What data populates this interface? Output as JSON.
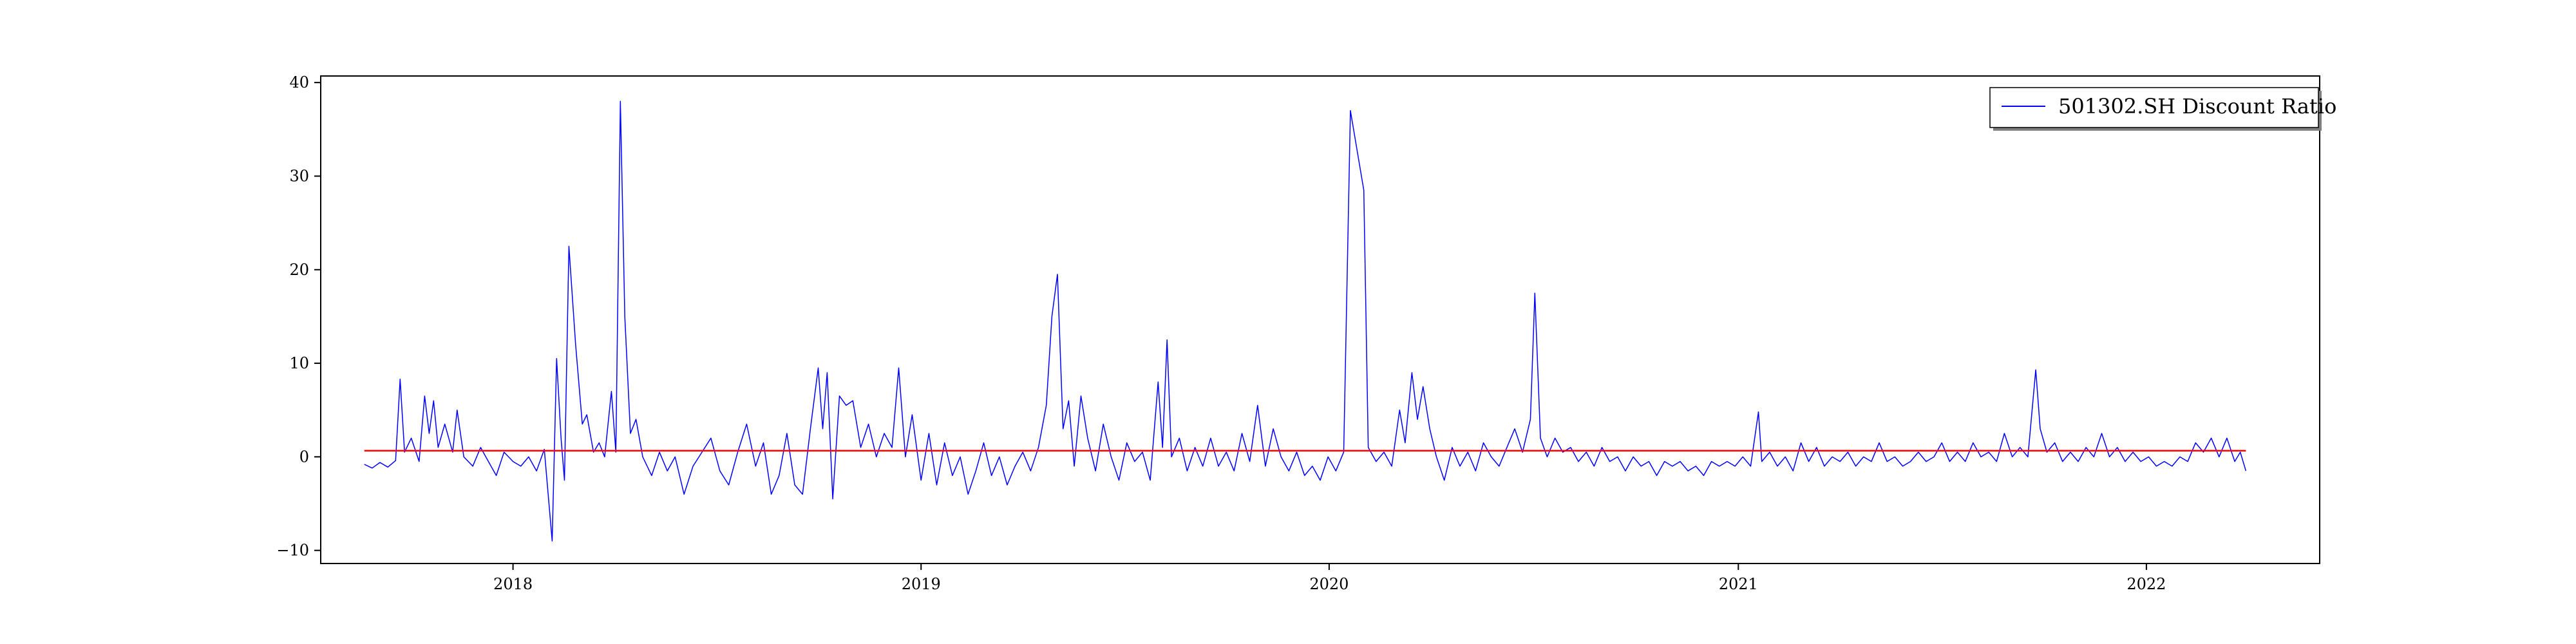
{
  "chart_data": {
    "type": "line",
    "title": "",
    "xlabel": "",
    "ylabel": "",
    "legend": {
      "placement": "top-right",
      "entries": [
        "501302.SH Discount Ratio"
      ]
    },
    "grid": false,
    "xlim": [
      "2017-07-13",
      "2022-06-05"
    ],
    "ylim": [
      -11.4,
      40.7
    ],
    "x_ticks": [
      {
        "date": "2018-01-01",
        "label": "2018"
      },
      {
        "date": "2019-01-01",
        "label": "2019"
      },
      {
        "date": "2020-01-01",
        "label": "2020"
      },
      {
        "date": "2021-01-01",
        "label": "2021"
      },
      {
        "date": "2022-01-01",
        "label": "2022"
      }
    ],
    "y_ticks": [
      -10,
      0,
      10,
      20,
      30,
      40
    ],
    "series": [
      {
        "name": "501302.SH Discount Ratio",
        "color": "#0000ff",
        "points": [
          [
            "2017-08-21",
            -0.8
          ],
          [
            "2017-08-28",
            -1.2
          ],
          [
            "2017-09-04",
            -0.6
          ],
          [
            "2017-09-11",
            -1.1
          ],
          [
            "2017-09-18",
            -0.4
          ],
          [
            "2017-09-22",
            8.3
          ],
          [
            "2017-09-26",
            0.5
          ],
          [
            "2017-10-02",
            2.0
          ],
          [
            "2017-10-09",
            -0.5
          ],
          [
            "2017-10-14",
            6.5
          ],
          [
            "2017-10-18",
            2.5
          ],
          [
            "2017-10-22",
            6.0
          ],
          [
            "2017-10-26",
            1.0
          ],
          [
            "2017-11-01",
            3.5
          ],
          [
            "2017-11-08",
            0.5
          ],
          [
            "2017-11-12",
            5.0
          ],
          [
            "2017-11-18",
            0.0
          ],
          [
            "2017-11-26",
            -1.0
          ],
          [
            "2017-12-03",
            1.0
          ],
          [
            "2017-12-10",
            -0.5
          ],
          [
            "2017-12-17",
            -2.0
          ],
          [
            "2017-12-24",
            0.5
          ],
          [
            "2018-01-01",
            -0.5
          ],
          [
            "2018-01-08",
            -1.0
          ],
          [
            "2018-01-15",
            0.0
          ],
          [
            "2018-01-22",
            -1.5
          ],
          [
            "2018-01-29",
            0.8
          ],
          [
            "2018-02-05",
            -9.0
          ],
          [
            "2018-02-09",
            10.5
          ],
          [
            "2018-02-13",
            2.0
          ],
          [
            "2018-02-16",
            -2.5
          ],
          [
            "2018-02-20",
            22.5
          ],
          [
            "2018-02-26",
            12.0
          ],
          [
            "2018-03-04",
            3.5
          ],
          [
            "2018-03-08",
            4.5
          ],
          [
            "2018-03-14",
            0.5
          ],
          [
            "2018-03-19",
            1.5
          ],
          [
            "2018-03-24",
            0.0
          ],
          [
            "2018-03-30",
            7.0
          ],
          [
            "2018-04-03",
            0.5
          ],
          [
            "2018-04-07",
            38.0
          ],
          [
            "2018-04-11",
            15.0
          ],
          [
            "2018-04-16",
            2.5
          ],
          [
            "2018-04-21",
            4.0
          ],
          [
            "2018-04-27",
            0.0
          ],
          [
            "2018-05-05",
            -2.0
          ],
          [
            "2018-05-12",
            0.5
          ],
          [
            "2018-05-19",
            -1.5
          ],
          [
            "2018-05-26",
            0.0
          ],
          [
            "2018-06-03",
            -4.0
          ],
          [
            "2018-06-11",
            -1.0
          ],
          [
            "2018-06-19",
            0.5
          ],
          [
            "2018-06-27",
            2.0
          ],
          [
            "2018-07-05",
            -1.5
          ],
          [
            "2018-07-13",
            -3.0
          ],
          [
            "2018-07-21",
            0.5
          ],
          [
            "2018-07-29",
            3.5
          ],
          [
            "2018-08-06",
            -1.0
          ],
          [
            "2018-08-13",
            1.5
          ],
          [
            "2018-08-20",
            -4.0
          ],
          [
            "2018-08-27",
            -2.0
          ],
          [
            "2018-09-03",
            2.5
          ],
          [
            "2018-09-10",
            -3.0
          ],
          [
            "2018-09-17",
            -4.0
          ],
          [
            "2018-09-24",
            3.0
          ],
          [
            "2018-10-01",
            9.5
          ],
          [
            "2018-10-05",
            3.0
          ],
          [
            "2018-10-09",
            9.0
          ],
          [
            "2018-10-14",
            -4.5
          ],
          [
            "2018-10-20",
            6.5
          ],
          [
            "2018-10-26",
            5.5
          ],
          [
            "2018-11-01",
            6.0
          ],
          [
            "2018-11-08",
            1.0
          ],
          [
            "2018-11-15",
            3.5
          ],
          [
            "2018-11-22",
            0.0
          ],
          [
            "2018-11-29",
            2.5
          ],
          [
            "2018-12-06",
            1.0
          ],
          [
            "2018-12-12",
            9.5
          ],
          [
            "2018-12-18",
            0.0
          ],
          [
            "2018-12-24",
            4.5
          ],
          [
            "2019-01-01",
            -2.5
          ],
          [
            "2019-01-08",
            2.5
          ],
          [
            "2019-01-15",
            -3.0
          ],
          [
            "2019-01-22",
            1.5
          ],
          [
            "2019-01-29",
            -2.0
          ],
          [
            "2019-02-05",
            0.0
          ],
          [
            "2019-02-12",
            -4.0
          ],
          [
            "2019-02-19",
            -1.5
          ],
          [
            "2019-02-26",
            1.5
          ],
          [
            "2019-03-05",
            -2.0
          ],
          [
            "2019-03-12",
            0.0
          ],
          [
            "2019-03-19",
            -3.0
          ],
          [
            "2019-03-26",
            -1.0
          ],
          [
            "2019-04-02",
            0.5
          ],
          [
            "2019-04-09",
            -1.5
          ],
          [
            "2019-04-16",
            1.0
          ],
          [
            "2019-04-23",
            5.5
          ],
          [
            "2019-04-28",
            15.0
          ],
          [
            "2019-05-03",
            19.5
          ],
          [
            "2019-05-08",
            3.0
          ],
          [
            "2019-05-13",
            6.0
          ],
          [
            "2019-05-18",
            -1.0
          ],
          [
            "2019-05-24",
            6.5
          ],
          [
            "2019-05-30",
            2.0
          ],
          [
            "2019-06-06",
            -1.5
          ],
          [
            "2019-06-13",
            3.5
          ],
          [
            "2019-06-20",
            0.0
          ],
          [
            "2019-06-27",
            -2.5
          ],
          [
            "2019-07-04",
            1.5
          ],
          [
            "2019-07-11",
            -0.5
          ],
          [
            "2019-07-18",
            0.5
          ],
          [
            "2019-07-25",
            -2.5
          ],
          [
            "2019-08-01",
            8.0
          ],
          [
            "2019-08-05",
            1.0
          ],
          [
            "2019-08-09",
            12.5
          ],
          [
            "2019-08-13",
            0.0
          ],
          [
            "2019-08-20",
            2.0
          ],
          [
            "2019-08-27",
            -1.5
          ],
          [
            "2019-09-03",
            1.0
          ],
          [
            "2019-09-10",
            -1.0
          ],
          [
            "2019-09-17",
            2.0
          ],
          [
            "2019-09-24",
            -1.0
          ],
          [
            "2019-10-01",
            0.5
          ],
          [
            "2019-10-08",
            -1.5
          ],
          [
            "2019-10-15",
            2.5
          ],
          [
            "2019-10-22",
            -0.5
          ],
          [
            "2019-10-29",
            5.5
          ],
          [
            "2019-11-05",
            -1.0
          ],
          [
            "2019-11-12",
            3.0
          ],
          [
            "2019-11-19",
            0.0
          ],
          [
            "2019-11-26",
            -1.5
          ],
          [
            "2019-12-03",
            0.5
          ],
          [
            "2019-12-10",
            -2.0
          ],
          [
            "2019-12-17",
            -1.0
          ],
          [
            "2019-12-24",
            -2.5
          ],
          [
            "2019-12-31",
            0.0
          ],
          [
            "2020-01-07",
            -1.5
          ],
          [
            "2020-01-14",
            0.5
          ],
          [
            "2020-01-20",
            37.0
          ],
          [
            "2020-02-01",
            28.5
          ],
          [
            "2020-02-05",
            1.0
          ],
          [
            "2020-02-12",
            -0.5
          ],
          [
            "2020-02-19",
            0.5
          ],
          [
            "2020-02-26",
            -1.0
          ],
          [
            "2020-03-04",
            5.0
          ],
          [
            "2020-03-09",
            1.5
          ],
          [
            "2020-03-15",
            9.0
          ],
          [
            "2020-03-20",
            4.0
          ],
          [
            "2020-03-25",
            7.5
          ],
          [
            "2020-03-31",
            3.0
          ],
          [
            "2020-04-06",
            0.0
          ],
          [
            "2020-04-13",
            -2.5
          ],
          [
            "2020-04-20",
            1.0
          ],
          [
            "2020-04-27",
            -1.0
          ],
          [
            "2020-05-04",
            0.5
          ],
          [
            "2020-05-11",
            -1.5
          ],
          [
            "2020-05-18",
            1.5
          ],
          [
            "2020-05-25",
            0.0
          ],
          [
            "2020-06-01",
            -1.0
          ],
          [
            "2020-06-08",
            1.0
          ],
          [
            "2020-06-15",
            3.0
          ],
          [
            "2020-06-22",
            0.5
          ],
          [
            "2020-06-29",
            4.0
          ],
          [
            "2020-07-03",
            17.5
          ],
          [
            "2020-07-08",
            2.0
          ],
          [
            "2020-07-14",
            0.0
          ],
          [
            "2020-07-21",
            2.0
          ],
          [
            "2020-07-28",
            0.5
          ],
          [
            "2020-08-04",
            1.0
          ],
          [
            "2020-08-11",
            -0.5
          ],
          [
            "2020-08-18",
            0.5
          ],
          [
            "2020-08-25",
            -1.0
          ],
          [
            "2020-09-01",
            1.0
          ],
          [
            "2020-09-08",
            -0.5
          ],
          [
            "2020-09-15",
            0.0
          ],
          [
            "2020-09-22",
            -1.5
          ],
          [
            "2020-09-29",
            0.0
          ],
          [
            "2020-10-06",
            -1.0
          ],
          [
            "2020-10-13",
            -0.5
          ],
          [
            "2020-10-20",
            -2.0
          ],
          [
            "2020-10-27",
            -0.5
          ],
          [
            "2020-11-03",
            -1.0
          ],
          [
            "2020-11-10",
            -0.5
          ],
          [
            "2020-11-17",
            -1.5
          ],
          [
            "2020-11-24",
            -1.0
          ],
          [
            "2020-12-01",
            -2.0
          ],
          [
            "2020-12-08",
            -0.5
          ],
          [
            "2020-12-15",
            -1.0
          ],
          [
            "2020-12-22",
            -0.5
          ],
          [
            "2020-12-29",
            -1.0
          ],
          [
            "2021-01-05",
            0.0
          ],
          [
            "2021-01-12",
            -1.0
          ],
          [
            "2021-01-19",
            4.8
          ],
          [
            "2021-01-22",
            -0.5
          ],
          [
            "2021-01-29",
            0.5
          ],
          [
            "2021-02-05",
            -1.0
          ],
          [
            "2021-02-12",
            0.0
          ],
          [
            "2021-02-19",
            -1.5
          ],
          [
            "2021-02-26",
            1.5
          ],
          [
            "2021-03-05",
            -0.5
          ],
          [
            "2021-03-12",
            1.0
          ],
          [
            "2021-03-19",
            -1.0
          ],
          [
            "2021-03-26",
            0.0
          ],
          [
            "2021-04-02",
            -0.5
          ],
          [
            "2021-04-09",
            0.5
          ],
          [
            "2021-04-16",
            -1.0
          ],
          [
            "2021-04-23",
            0.0
          ],
          [
            "2021-04-30",
            -0.5
          ],
          [
            "2021-05-07",
            1.5
          ],
          [
            "2021-05-14",
            -0.5
          ],
          [
            "2021-05-21",
            0.0
          ],
          [
            "2021-05-28",
            -1.0
          ],
          [
            "2021-06-04",
            -0.5
          ],
          [
            "2021-06-11",
            0.5
          ],
          [
            "2021-06-18",
            -0.5
          ],
          [
            "2021-06-25",
            0.0
          ],
          [
            "2021-07-02",
            1.5
          ],
          [
            "2021-07-09",
            -0.5
          ],
          [
            "2021-07-16",
            0.5
          ],
          [
            "2021-07-23",
            -0.5
          ],
          [
            "2021-07-30",
            1.5
          ],
          [
            "2021-08-06",
            0.0
          ],
          [
            "2021-08-13",
            0.5
          ],
          [
            "2021-08-20",
            -0.5
          ],
          [
            "2021-08-27",
            2.5
          ],
          [
            "2021-09-03",
            0.0
          ],
          [
            "2021-09-10",
            1.0
          ],
          [
            "2021-09-17",
            0.0
          ],
          [
            "2021-09-24",
            9.3
          ],
          [
            "2021-09-28",
            3.0
          ],
          [
            "2021-10-04",
            0.5
          ],
          [
            "2021-10-11",
            1.5
          ],
          [
            "2021-10-18",
            -0.5
          ],
          [
            "2021-10-25",
            0.5
          ],
          [
            "2021-11-01",
            -0.5
          ],
          [
            "2021-11-08",
            1.0
          ],
          [
            "2021-11-15",
            0.0
          ],
          [
            "2021-11-22",
            2.5
          ],
          [
            "2021-11-29",
            0.0
          ],
          [
            "2021-12-06",
            1.0
          ],
          [
            "2021-12-13",
            -0.5
          ],
          [
            "2021-12-20",
            0.5
          ],
          [
            "2021-12-27",
            -0.5
          ],
          [
            "2022-01-03",
            0.0
          ],
          [
            "2022-01-10",
            -1.0
          ],
          [
            "2022-01-17",
            -0.5
          ],
          [
            "2022-01-24",
            -1.0
          ],
          [
            "2022-01-31",
            0.0
          ],
          [
            "2022-02-07",
            -0.5
          ],
          [
            "2022-02-14",
            1.5
          ],
          [
            "2022-02-21",
            0.5
          ],
          [
            "2022-02-28",
            2.0
          ],
          [
            "2022-03-07",
            0.0
          ],
          [
            "2022-03-14",
            2.0
          ],
          [
            "2022-03-21",
            -0.5
          ],
          [
            "2022-03-26",
            0.5
          ],
          [
            "2022-03-31",
            -1.5
          ]
        ]
      },
      {
        "name": "",
        "color": "#ff0000",
        "points": [
          [
            "2017-08-21",
            0.65
          ],
          [
            "2022-03-31",
            0.65
          ]
        ]
      }
    ]
  }
}
